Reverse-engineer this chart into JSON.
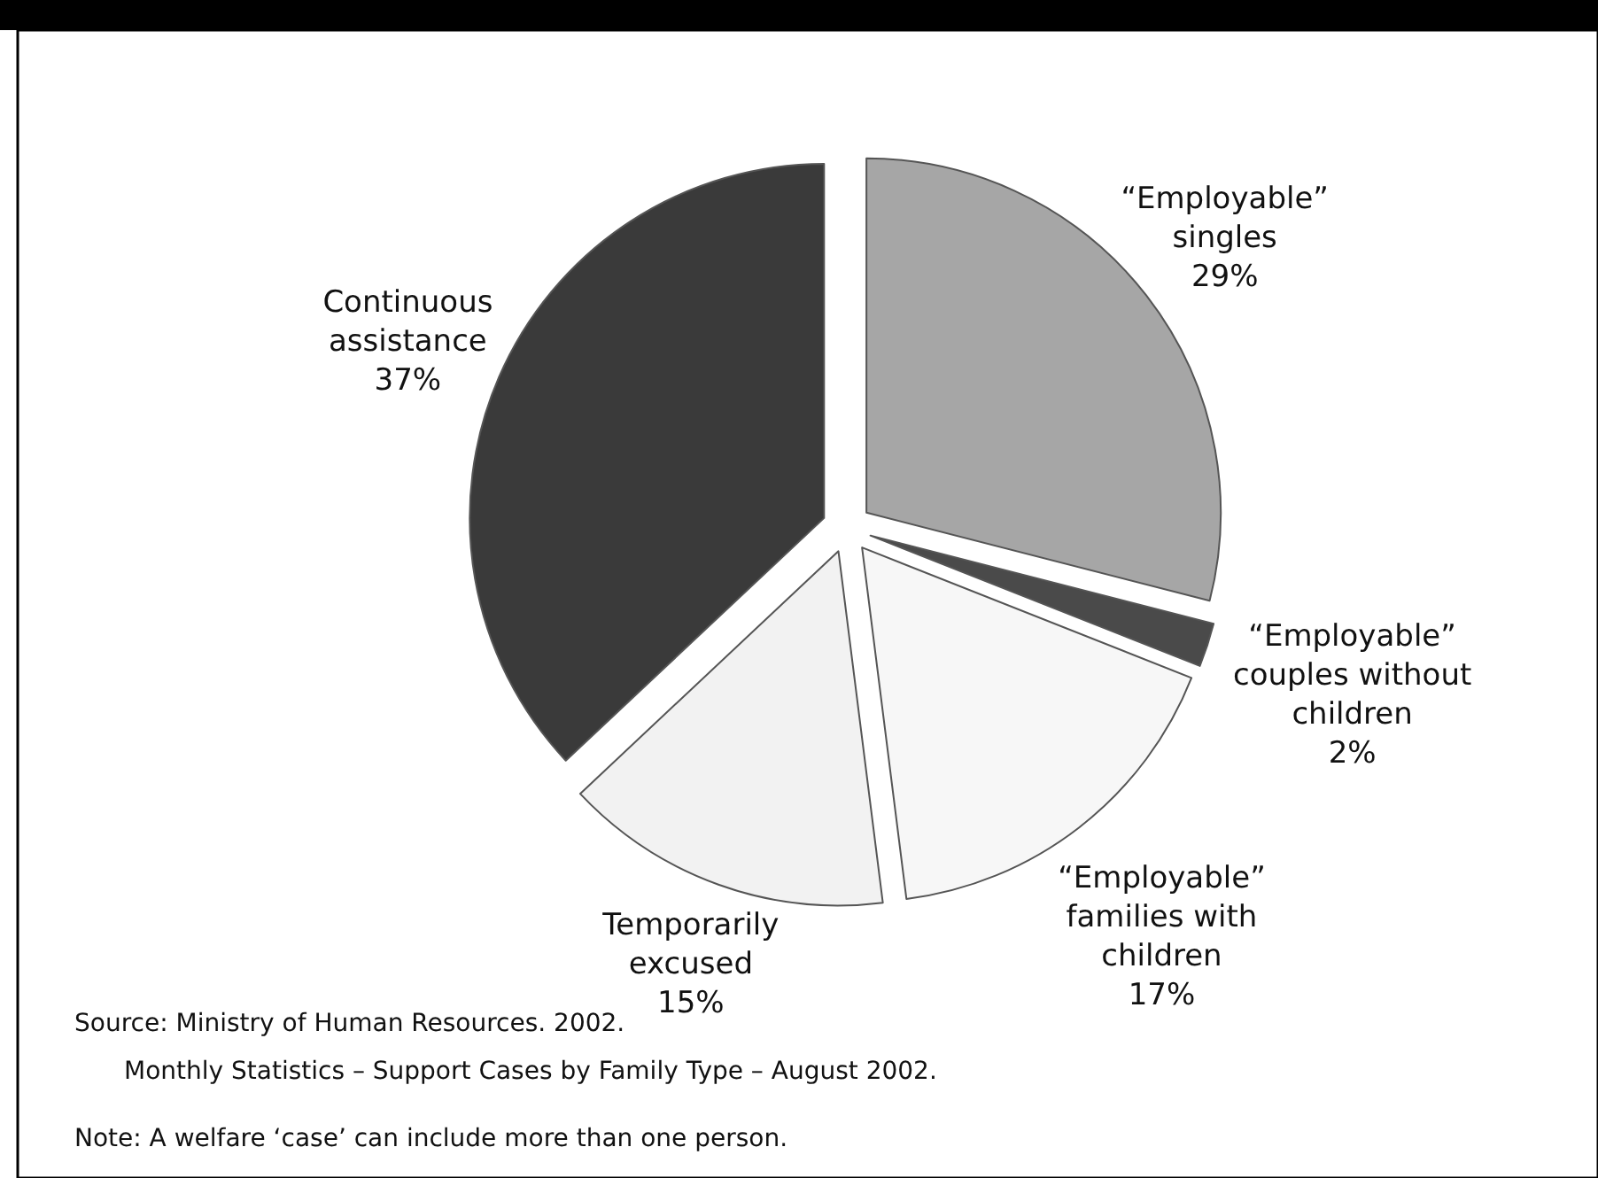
{
  "chart_data": {
    "type": "pie",
    "categories": [
      "“Employable” singles",
      "“Employable” couples without children",
      "“Employable” families with children",
      "Temporarily excused",
      "Continuous assistance"
    ],
    "values": [
      29,
      2,
      17,
      15,
      37
    ],
    "colors": [
      "#a6a6a6",
      "#4a4a4a",
      "#f7f7f7",
      "#f2f2f2",
      "#3a3a3a"
    ],
    "value_labels": [
      "29%",
      "2%",
      "17%",
      "15%",
      "37%"
    ],
    "annotations": [
      "Source: Ministry of Human Resources. 2002.",
      "Monthly Statistics – Support Cases by Family Type – August 2002.",
      "Note: A welfare ‘case’ can include more than one person."
    ]
  }
}
